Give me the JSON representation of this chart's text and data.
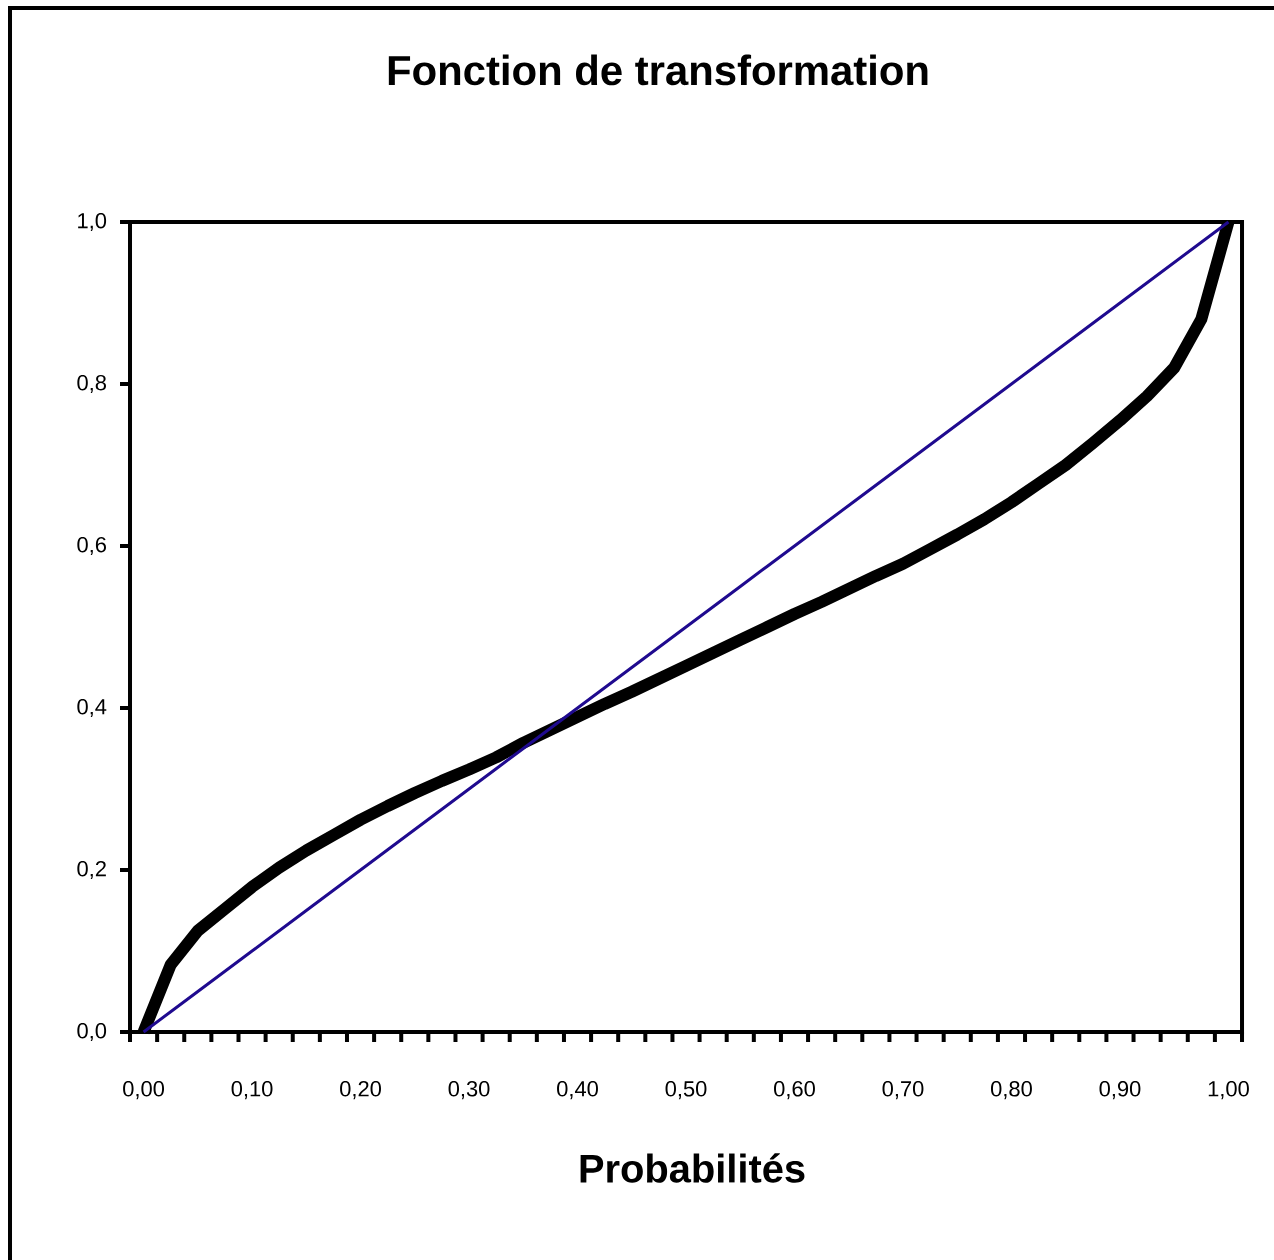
{
  "chart_data": {
    "type": "line",
    "title": "Fonction de transformation",
    "xlabel": "Probabilités",
    "categories": [
      "0,00",
      null,
      null,
      null,
      "0,10",
      null,
      null,
      null,
      "0,20",
      null,
      null,
      null,
      "0,30",
      null,
      null,
      null,
      "0,40",
      null,
      null,
      null,
      "0,50",
      null,
      null,
      null,
      "0,60",
      null,
      null,
      null,
      "0,70",
      null,
      null,
      null,
      "0,80",
      null,
      null,
      null,
      "0,90",
      null,
      null,
      null,
      "1,00"
    ],
    "ylim": [
      0,
      1
    ],
    "yticks": [
      {
        "value": 0,
        "label": "0,0"
      },
      {
        "value": 0.2,
        "label": "0,2"
      },
      {
        "value": 0.4,
        "label": "0,4"
      },
      {
        "value": 0.6,
        "label": "0,6"
      },
      {
        "value": 0.8,
        "label": "0,8"
      },
      {
        "value": 1,
        "label": "1,0"
      }
    ],
    "series": [
      {
        "color": "#000000",
        "values": [
          0,
          0.083,
          0.125,
          0.152,
          0.179,
          0.203,
          0.224,
          0.243,
          0.262,
          0.279,
          0.295,
          0.31,
          0.324,
          0.339,
          0.357,
          0.373,
          0.389,
          0.405,
          0.42,
          0.436,
          0.452,
          0.468,
          0.484,
          0.5,
          0.516,
          0.531,
          0.547,
          0.563,
          0.578,
          0.596,
          0.614,
          0.633,
          0.654,
          0.677,
          0.7,
          0.727,
          0.755,
          0.785,
          0.82,
          0.88,
          1.0
        ]
      },
      {
        "color": "#1f0a8f",
        "values": [
          0,
          0.025,
          0.05,
          0.075,
          0.1,
          0.125,
          0.15,
          0.175,
          0.2,
          0.225,
          0.25,
          0.275,
          0.3,
          0.325,
          0.35,
          0.375,
          0.4,
          0.425,
          0.45,
          0.475,
          0.5,
          0.525,
          0.55,
          0.575,
          0.6,
          0.625,
          0.65,
          0.675,
          0.7,
          0.725,
          0.75,
          0.775,
          0.8,
          0.825,
          0.85,
          0.875,
          0.9,
          0.925,
          0.95,
          0.975,
          1.0
        ]
      }
    ]
  }
}
